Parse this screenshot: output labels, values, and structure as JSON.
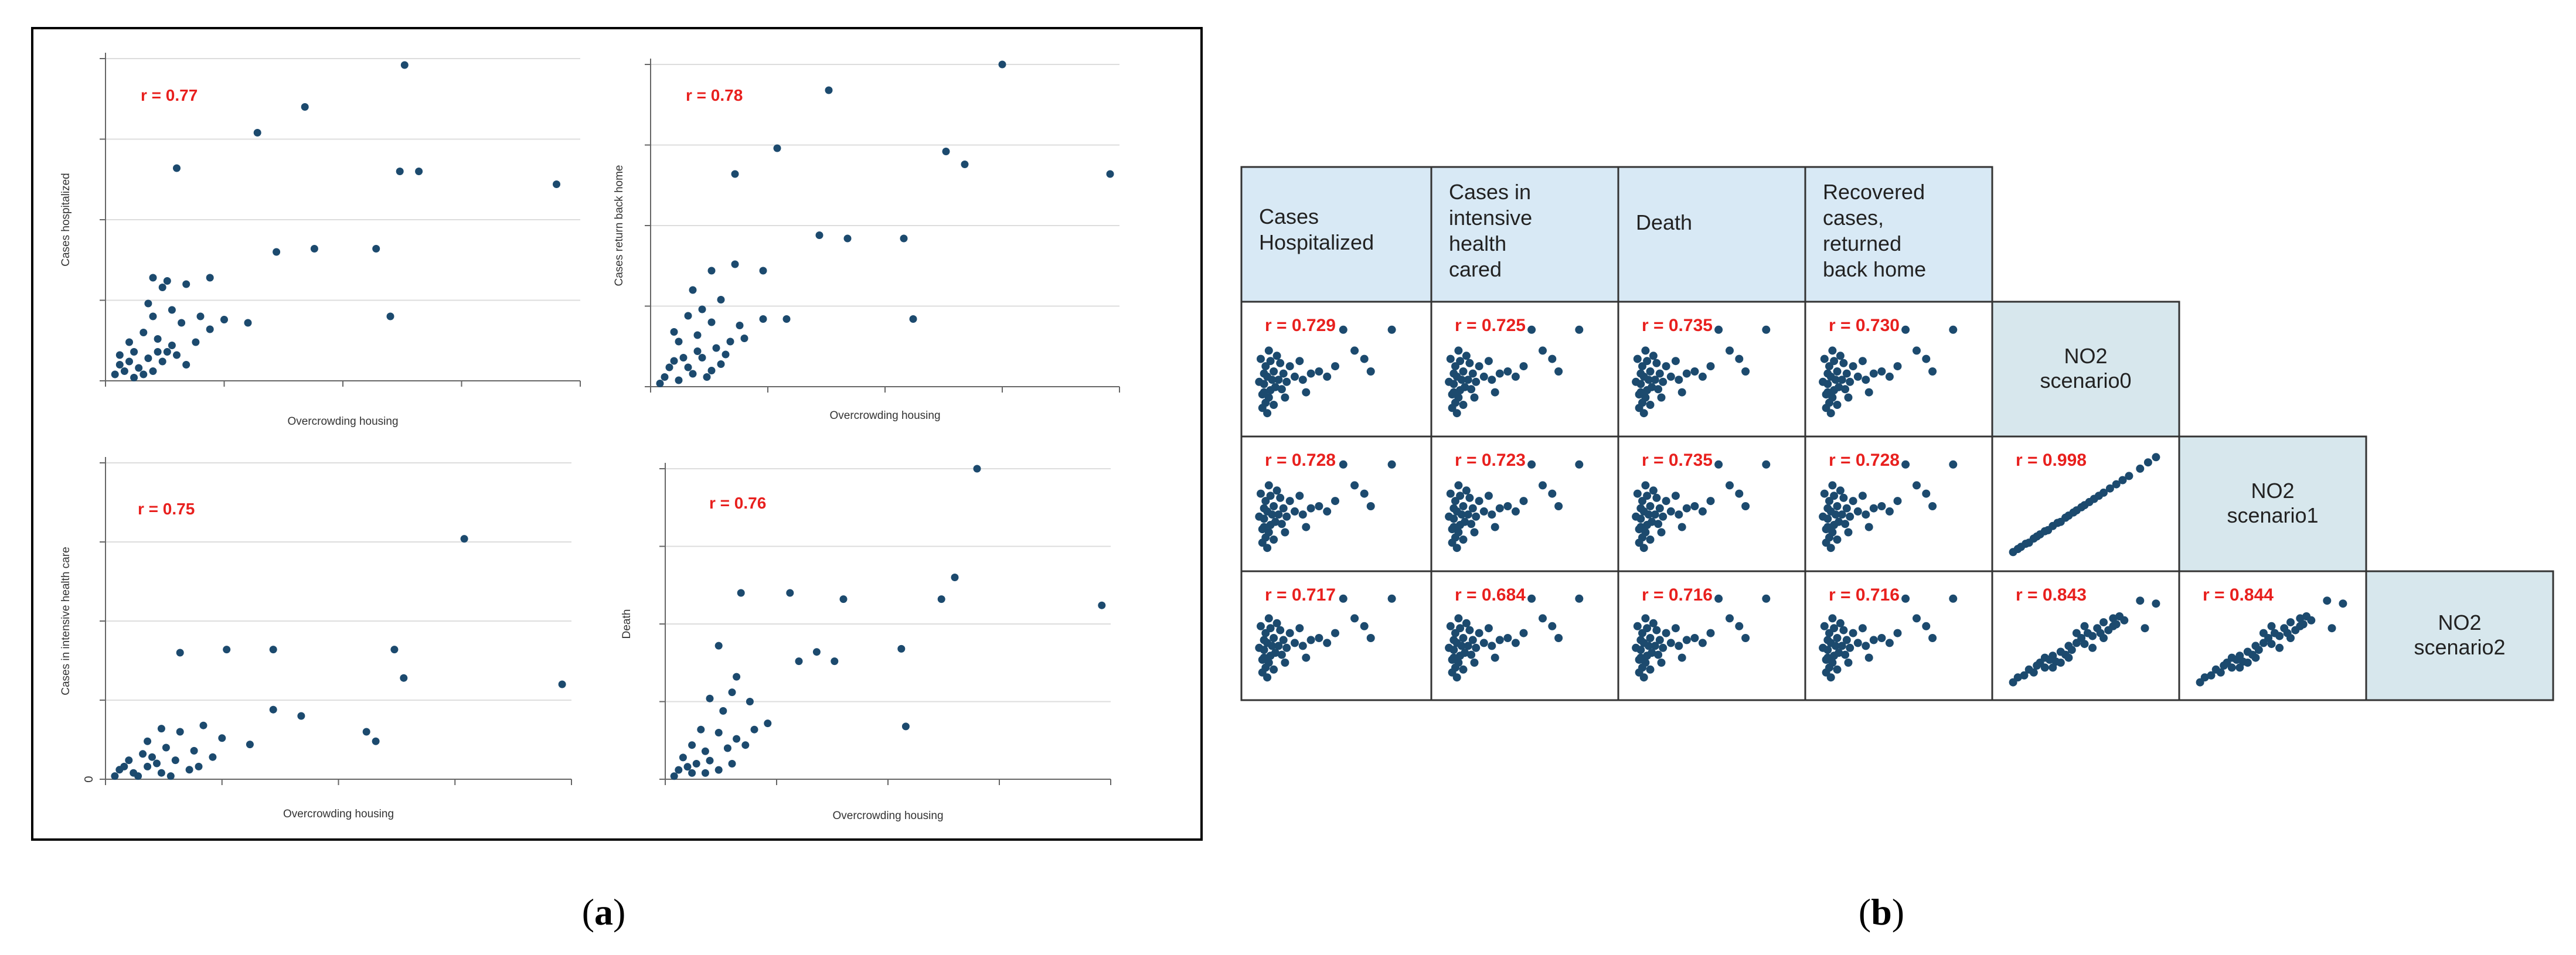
{
  "panel_labels": {
    "a": "a",
    "b": "b"
  },
  "colors": {
    "point": "#1c4a6e",
    "r_label": "#e8201e",
    "header_fill": "#d8e9f5",
    "diag_fill": "#d7e7ed",
    "grid": "#dddddd",
    "frame": "#000000"
  },
  "chart_data": [
    {
      "type": "scatter",
      "panel": "a1",
      "title": "",
      "xlabel": "Overcrowding housing",
      "ylabel": "Cases hospitalized",
      "r_label": "r = 0.77",
      "xlim": [
        0,
        10
      ],
      "ylim": [
        0,
        10
      ],
      "tick_labels": [],
      "points": [
        [
          6.3,
          9.8
        ],
        [
          4.2,
          8.5
        ],
        [
          3.2,
          7.7
        ],
        [
          1.5,
          6.6
        ],
        [
          6.2,
          6.5
        ],
        [
          6.6,
          6.5
        ],
        [
          9.5,
          6.1
        ],
        [
          3.6,
          4.0
        ],
        [
          4.4,
          4.1
        ],
        [
          5.7,
          4.1
        ],
        [
          1.0,
          3.2
        ],
        [
          1.3,
          3.1
        ],
        [
          2.2,
          3.2
        ],
        [
          1.7,
          3.0
        ],
        [
          1.2,
          2.9
        ],
        [
          6.0,
          2.0
        ],
        [
          1.0,
          2.0
        ],
        [
          2.0,
          2.0
        ],
        [
          2.5,
          1.9
        ],
        [
          3.0,
          1.8
        ],
        [
          0.5,
          1.2
        ],
        [
          0.8,
          1.5
        ],
        [
          1.1,
          1.3
        ],
        [
          1.4,
          1.1
        ],
        [
          1.9,
          1.2
        ],
        [
          0.6,
          0.9
        ],
        [
          0.9,
          0.7
        ],
        [
          1.2,
          0.6
        ],
        [
          1.5,
          0.8
        ],
        [
          0.3,
          0.5
        ],
        [
          0.4,
          0.3
        ],
        [
          0.7,
          0.4
        ],
        [
          1.0,
          0.3
        ],
        [
          0.2,
          0.2
        ],
        [
          0.5,
          0.6
        ],
        [
          0.8,
          0.2
        ],
        [
          1.3,
          0.9
        ],
        [
          1.7,
          0.5
        ],
        [
          0.3,
          0.8
        ],
        [
          1.1,
          0.9
        ],
        [
          0.6,
          0.1
        ],
        [
          2.2,
          1.6
        ],
        [
          1.6,
          1.8
        ],
        [
          0.9,
          2.4
        ],
        [
          1.4,
          2.2
        ]
      ]
    },
    {
      "type": "scatter",
      "panel": "a2",
      "title": "",
      "xlabel": "Overcrowding housing",
      "ylabel": "Cases return back home",
      "r_label": "r = 0.78",
      "xlim": [
        0,
        10
      ],
      "ylim": [
        0,
        10
      ],
      "tick_labels": [],
      "points": [
        [
          7.5,
          10.0
        ],
        [
          3.8,
          9.2
        ],
        [
          6.3,
          7.3
        ],
        [
          6.7,
          6.9
        ],
        [
          9.8,
          6.6
        ],
        [
          2.7,
          7.4
        ],
        [
          1.8,
          6.6
        ],
        [
          3.6,
          4.7
        ],
        [
          4.2,
          4.6
        ],
        [
          5.4,
          4.6
        ],
        [
          1.3,
          3.6
        ],
        [
          1.8,
          3.8
        ],
        [
          2.4,
          3.6
        ],
        [
          5.6,
          2.1
        ],
        [
          2.4,
          2.1
        ],
        [
          0.8,
          2.2
        ],
        [
          1.3,
          2.0
        ],
        [
          1.9,
          1.9
        ],
        [
          2.9,
          2.1
        ],
        [
          0.6,
          1.4
        ],
        [
          1.0,
          1.6
        ],
        [
          1.4,
          1.2
        ],
        [
          1.7,
          1.4
        ],
        [
          0.5,
          0.8
        ],
        [
          0.8,
          0.6
        ],
        [
          1.1,
          0.9
        ],
        [
          1.5,
          0.7
        ],
        [
          0.3,
          0.3
        ],
        [
          0.6,
          0.2
        ],
        [
          0.9,
          0.4
        ],
        [
          1.2,
          0.3
        ],
        [
          0.4,
          0.6
        ],
        [
          1.6,
          1.0
        ],
        [
          0.2,
          0.1
        ],
        [
          0.7,
          0.9
        ],
        [
          1.0,
          1.1
        ],
        [
          2.0,
          1.5
        ],
        [
          1.3,
          0.5
        ],
        [
          0.5,
          1.7
        ],
        [
          1.5,
          2.7
        ],
        [
          0.9,
          3.0
        ],
        [
          1.1,
          2.4
        ]
      ]
    },
    {
      "type": "scatter",
      "panel": "a3",
      "title": "",
      "xlabel": "Overcrowding housing",
      "ylabel": "Cases in intensive health care",
      "r_label": "r = 0.75",
      "xlim": [
        0,
        10
      ],
      "ylim": [
        0,
        10
      ],
      "tick_labels": [
        "0"
      ],
      "points": [
        [
          7.7,
          7.6
        ],
        [
          1.6,
          4.0
        ],
        [
          2.6,
          4.1
        ],
        [
          3.6,
          4.1
        ],
        [
          6.2,
          4.1
        ],
        [
          6.4,
          3.2
        ],
        [
          9.8,
          3.0
        ],
        [
          3.6,
          2.2
        ],
        [
          4.2,
          2.0
        ],
        [
          5.6,
          1.5
        ],
        [
          5.8,
          1.2
        ],
        [
          1.2,
          1.6
        ],
        [
          1.6,
          1.5
        ],
        [
          2.1,
          1.7
        ],
        [
          2.5,
          1.3
        ],
        [
          3.1,
          1.1
        ],
        [
          0.9,
          1.2
        ],
        [
          1.3,
          1.0
        ],
        [
          1.9,
          0.9
        ],
        [
          2.3,
          0.7
        ],
        [
          0.5,
          0.6
        ],
        [
          0.8,
          0.8
        ],
        [
          1.1,
          0.5
        ],
        [
          1.5,
          0.6
        ],
        [
          0.3,
          0.3
        ],
        [
          0.6,
          0.2
        ],
        [
          0.9,
          0.4
        ],
        [
          1.2,
          0.2
        ],
        [
          0.2,
          0.1
        ],
        [
          0.7,
          0.1
        ],
        [
          1.8,
          0.3
        ],
        [
          1.4,
          0.1
        ],
        [
          0.4,
          0.4
        ],
        [
          1.0,
          0.7
        ],
        [
          2.0,
          0.4
        ]
      ]
    },
    {
      "type": "scatter",
      "panel": "a4",
      "title": "",
      "xlabel": "Overcrowding housing",
      "ylabel": "Death",
      "r_label": "r = 0.76",
      "xlim": [
        0,
        10
      ],
      "ylim": [
        0,
        10
      ],
      "tick_labels": [],
      "points": [
        [
          7.0,
          10.0
        ],
        [
          6.5,
          6.5
        ],
        [
          6.2,
          5.8
        ],
        [
          9.8,
          5.6
        ],
        [
          1.7,
          6.0
        ],
        [
          2.8,
          6.0
        ],
        [
          4.0,
          5.8
        ],
        [
          5.3,
          4.2
        ],
        [
          3.4,
          4.1
        ],
        [
          3.0,
          3.8
        ],
        [
          3.8,
          3.8
        ],
        [
          1.2,
          4.3
        ],
        [
          1.6,
          3.3
        ],
        [
          1.0,
          2.6
        ],
        [
          1.5,
          2.8
        ],
        [
          1.9,
          2.5
        ],
        [
          1.3,
          2.2
        ],
        [
          5.4,
          1.7
        ],
        [
          2.3,
          1.8
        ],
        [
          2.0,
          1.6
        ],
        [
          0.8,
          1.6
        ],
        [
          1.2,
          1.5
        ],
        [
          1.6,
          1.3
        ],
        [
          0.6,
          1.1
        ],
        [
          0.9,
          0.9
        ],
        [
          1.4,
          1.0
        ],
        [
          0.4,
          0.7
        ],
        [
          0.7,
          0.5
        ],
        [
          1.0,
          0.6
        ],
        [
          0.3,
          0.3
        ],
        [
          0.6,
          0.2
        ],
        [
          1.2,
          0.3
        ],
        [
          0.2,
          0.1
        ],
        [
          0.9,
          0.2
        ],
        [
          1.8,
          1.1
        ],
        [
          1.5,
          0.5
        ],
        [
          0.5,
          0.4
        ]
      ]
    },
    {
      "type": "scatter_matrix",
      "panel": "b",
      "column_headers": [
        "Cases Hospitalized",
        "Cases in intensive health cared",
        "Death",
        "Recovered cases, returned back home"
      ],
      "row_headers": [
        "NO2 scenario0",
        "NO2 scenario1",
        "NO2 scenario2"
      ],
      "r_values": [
        [
          "r = 0.729",
          "r = 0.725",
          "r = 0.735",
          "r = 0.730"
        ],
        [
          "r = 0.728",
          "r = 0.723",
          "r = 0.735",
          "r = 0.728",
          "r = 0.998"
        ],
        [
          "r = 0.717",
          "r = 0.684",
          "r = 0.716",
          "r = 0.716",
          "r = 0.843",
          "r = 0.844"
        ]
      ],
      "cluster_points": [
        [
          0.08,
          0.45
        ],
        [
          0.06,
          0.38
        ],
        [
          0.1,
          0.32
        ],
        [
          0.12,
          0.5
        ],
        [
          0.07,
          0.55
        ],
        [
          0.15,
          0.42
        ],
        [
          0.05,
          0.28
        ],
        [
          0.09,
          0.25
        ],
        [
          0.13,
          0.35
        ],
        [
          0.18,
          0.48
        ],
        [
          0.2,
          0.4
        ],
        [
          0.25,
          0.45
        ],
        [
          0.3,
          0.42
        ],
        [
          0.35,
          0.48
        ],
        [
          0.04,
          0.62
        ],
        [
          0.1,
          0.6
        ],
        [
          0.16,
          0.58
        ],
        [
          0.22,
          0.55
        ],
        [
          0.07,
          0.2
        ],
        [
          0.12,
          0.18
        ],
        [
          0.05,
          0.15
        ],
        [
          0.09,
          0.7
        ],
        [
          0.14,
          0.65
        ],
        [
          0.06,
          0.48
        ],
        [
          0.11,
          0.42
        ],
        [
          0.17,
          0.33
        ],
        [
          0.08,
          0.1
        ],
        [
          0.03,
          0.4
        ],
        [
          0.06,
          0.3
        ],
        [
          0.4,
          0.5
        ],
        [
          0.45,
          0.45
        ],
        [
          0.5,
          0.55
        ],
        [
          0.62,
          0.7
        ],
        [
          0.68,
          0.62
        ],
        [
          0.72,
          0.5
        ],
        [
          0.85,
          0.9
        ],
        [
          0.55,
          0.9
        ],
        [
          0.28,
          0.6
        ],
        [
          0.32,
          0.3
        ],
        [
          0.19,
          0.25
        ]
      ],
      "linear_points": [
        [
          0.05,
          0.06
        ],
        [
          0.08,
          0.09
        ],
        [
          0.1,
          0.11
        ],
        [
          0.13,
          0.14
        ],
        [
          0.15,
          0.15
        ],
        [
          0.18,
          0.19
        ],
        [
          0.2,
          0.21
        ],
        [
          0.22,
          0.23
        ],
        [
          0.25,
          0.26
        ],
        [
          0.27,
          0.27
        ],
        [
          0.3,
          0.31
        ],
        [
          0.33,
          0.34
        ],
        [
          0.35,
          0.35
        ],
        [
          0.38,
          0.39
        ],
        [
          0.4,
          0.41
        ],
        [
          0.43,
          0.44
        ],
        [
          0.45,
          0.46
        ],
        [
          0.48,
          0.49
        ],
        [
          0.5,
          0.51
        ],
        [
          0.53,
          0.54
        ],
        [
          0.56,
          0.57
        ],
        [
          0.59,
          0.6
        ],
        [
          0.62,
          0.63
        ],
        [
          0.66,
          0.67
        ],
        [
          0.7,
          0.71
        ],
        [
          0.74,
          0.75
        ],
        [
          0.78,
          0.79
        ],
        [
          0.85,
          0.86
        ],
        [
          0.9,
          0.92
        ],
        [
          0.95,
          0.97
        ]
      ],
      "diffuse_points": [
        [
          0.05,
          0.05
        ],
        [
          0.08,
          0.1
        ],
        [
          0.12,
          0.12
        ],
        [
          0.15,
          0.18
        ],
        [
          0.18,
          0.15
        ],
        [
          0.2,
          0.22
        ],
        [
          0.22,
          0.25
        ],
        [
          0.25,
          0.2
        ],
        [
          0.28,
          0.28
        ],
        [
          0.3,
          0.32
        ],
        [
          0.32,
          0.26
        ],
        [
          0.35,
          0.36
        ],
        [
          0.38,
          0.33
        ],
        [
          0.4,
          0.42
        ],
        [
          0.42,
          0.38
        ],
        [
          0.45,
          0.45
        ],
        [
          0.48,
          0.5
        ],
        [
          0.5,
          0.44
        ],
        [
          0.52,
          0.55
        ],
        [
          0.55,
          0.52
        ],
        [
          0.58,
          0.6
        ],
        [
          0.6,
          0.55
        ],
        [
          0.62,
          0.66
        ],
        [
          0.65,
          0.58
        ],
        [
          0.68,
          0.7
        ],
        [
          0.7,
          0.64
        ],
        [
          0.72,
          0.72
        ],
        [
          0.75,
          0.68
        ],
        [
          0.3,
          0.2
        ],
        [
          0.4,
          0.3
        ],
        [
          0.5,
          0.62
        ],
        [
          0.55,
          0.4
        ],
        [
          0.35,
          0.25
        ],
        [
          0.45,
          0.55
        ],
        [
          0.62,
          0.5
        ],
        [
          0.25,
          0.3
        ],
        [
          0.68,
          0.62
        ],
        [
          0.85,
          0.88
        ],
        [
          0.95,
          0.85
        ],
        [
          0.88,
          0.6
        ]
      ]
    }
  ]
}
